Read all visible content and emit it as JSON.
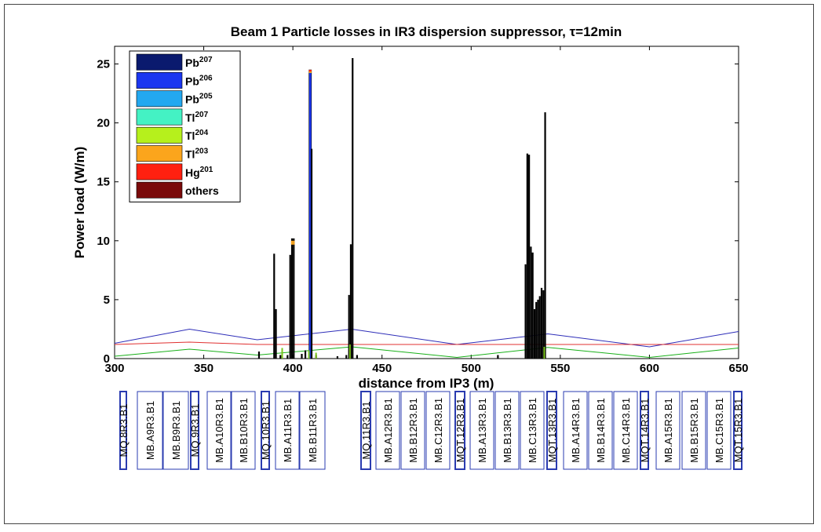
{
  "chart_data": {
    "type": "bar",
    "title": "Beam 1 Particle losses in IR3 dispersion suppressor, τ=12min",
    "xlabel": "distance from IP3 (m)",
    "ylabel": "Power load (W/m)",
    "xlim": [
      300,
      650
    ],
    "ylim": [
      0,
      26.5
    ],
    "xticks": [
      "300",
      "350",
      "400",
      "450",
      "500",
      "550",
      "600",
      "650"
    ],
    "yticks": [
      "0",
      "5",
      "10",
      "15",
      "20",
      "25"
    ],
    "legend_position": "top-left",
    "series": [
      {
        "name": "Pb",
        "sup": "207",
        "color": "#0a1a6e"
      },
      {
        "name": "Pb",
        "sup": "206",
        "color": "#1b36f0"
      },
      {
        "name": "Pb",
        "sup": "205",
        "color": "#23a8f0"
      },
      {
        "name": "Tl",
        "sup": "207",
        "color": "#44f2c4"
      },
      {
        "name": "Tl",
        "sup": "204",
        "color": "#b6f01c"
      },
      {
        "name": "Tl",
        "sup": "203",
        "color": "#fba51c"
      },
      {
        "name": "Hg",
        "sup": "201",
        "color": "#ff2010"
      },
      {
        "name": "others",
        "sup": "",
        "color": "#7a0a0a"
      }
    ],
    "bars": [
      {
        "x": 381,
        "y": 0.6
      },
      {
        "x": 389.5,
        "y": 8.9
      },
      {
        "x": 390.5,
        "y": 4.2
      },
      {
        "x": 393,
        "y": 0.3
      },
      {
        "x": 397,
        "y": 0.3
      },
      {
        "x": 398.5,
        "y": 8.8
      },
      {
        "x": 399.5,
        "y": 10.2
      },
      {
        "x": 400.5,
        "y": 10.2
      },
      {
        "x": 405,
        "y": 0.4
      },
      {
        "x": 407,
        "y": 0.7
      },
      {
        "x": 409.5,
        "y": 24.5
      },
      {
        "x": 410.5,
        "y": 17.8
      },
      {
        "x": 413,
        "y": 0.3
      },
      {
        "x": 425,
        "y": 0.2
      },
      {
        "x": 430,
        "y": 0.3
      },
      {
        "x": 431.5,
        "y": 5.4
      },
      {
        "x": 432.5,
        "y": 9.7
      },
      {
        "x": 433.5,
        "y": 25.5
      },
      {
        "x": 436,
        "y": 0.3
      },
      {
        "x": 515,
        "y": 0.3
      },
      {
        "x": 530.5,
        "y": 8.0
      },
      {
        "x": 531.5,
        "y": 17.4
      },
      {
        "x": 532.5,
        "y": 17.3
      },
      {
        "x": 533.5,
        "y": 9.5
      },
      {
        "x": 534.5,
        "y": 9.0
      },
      {
        "x": 535.5,
        "y": 4.2
      },
      {
        "x": 536.5,
        "y": 4.8
      },
      {
        "x": 537.5,
        "y": 5.0
      },
      {
        "x": 538.5,
        "y": 5.3
      },
      {
        "x": 539.5,
        "y": 6.0
      },
      {
        "x": 540.5,
        "y": 5.8
      },
      {
        "x": 541.5,
        "y": 20.9
      }
    ],
    "lines": [
      {
        "color": "#2d2db8",
        "points": [
          [
            300,
            1.3
          ],
          [
            342,
            2.5
          ],
          [
            380,
            1.6
          ],
          [
            433,
            2.5
          ],
          [
            492,
            1.2
          ],
          [
            543,
            2.1
          ],
          [
            600,
            1.0
          ],
          [
            650,
            2.3
          ]
        ]
      },
      {
        "color": "#e03030",
        "points": [
          [
            300,
            1.2
          ],
          [
            342,
            1.4
          ],
          [
            380,
            1.2
          ],
          [
            433,
            1.2
          ],
          [
            492,
            1.2
          ],
          [
            543,
            1.2
          ],
          [
            600,
            1.2
          ],
          [
            650,
            1.2
          ]
        ]
      },
      {
        "color": "#19b019",
        "points": [
          [
            300,
            0.2
          ],
          [
            342,
            0.8
          ],
          [
            380,
            0.3
          ],
          [
            433,
            1.0
          ],
          [
            492,
            0.1
          ],
          [
            543,
            0.95
          ],
          [
            600,
            0.1
          ],
          [
            650,
            0.9
          ]
        ]
      }
    ]
  },
  "elements": [
    "MQ.8R3.B1",
    "MB.A9R3.B1",
    "MB.B9R3.B1",
    "MQ.9R3.B1",
    "MB.A10R3.B1",
    "MB.B10R3.B1",
    "MQ.10R3.B1",
    "MB.A11R3.B1",
    "MB.B11R3.B1",
    "MQ.11R3.B1",
    "MB.A12R3.B1",
    "MB.B12R3.B1",
    "MB.C12R3.B1",
    "MQT.12R3.B1",
    "MB.A13R3.B1",
    "MB.B13R3.B1",
    "MB.C13R3.B1",
    "MQT.13R3.B1",
    "MB.A14R3.B1",
    "MB.B14R3.B1",
    "MB.C14R3.B1",
    "MQT.14R3.B1",
    "MB.A15R3.B1",
    "MB.B15R3.B1",
    "MB.C15R3.B1",
    "MQT.15R3.B1"
  ]
}
